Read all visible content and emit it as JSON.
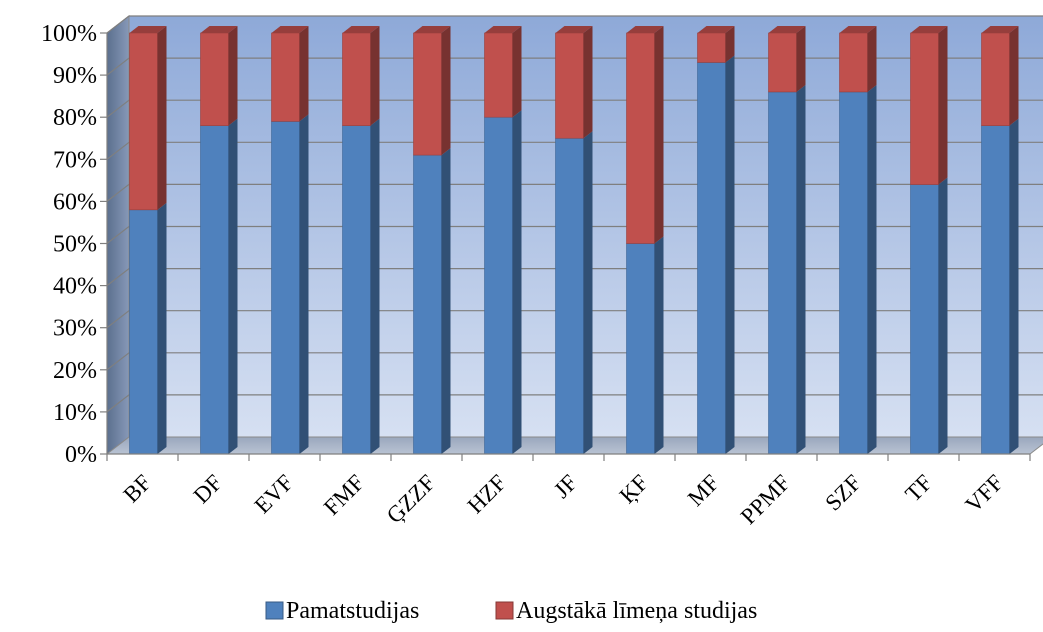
{
  "chart_data": {
    "type": "bar",
    "stacked": true,
    "percent": true,
    "three_d": true,
    "categories": [
      "BF",
      "DF",
      "EVF",
      "FMF",
      "ĢZZF",
      "HZF",
      "JF",
      "ĶF",
      "MF",
      "PPMF",
      "SZF",
      "TF",
      "VFF"
    ],
    "series": [
      {
        "name": "Pamatstudijas",
        "color": "#4f81bd",
        "values": [
          58,
          78,
          79,
          78,
          71,
          80,
          75,
          50,
          93,
          86,
          86,
          64,
          78
        ]
      },
      {
        "name": "Augstākā līmeņa studijas",
        "color": "#c0504d",
        "values": [
          42,
          22,
          21,
          22,
          29,
          20,
          25,
          50,
          7,
          14,
          14,
          36,
          22
        ]
      }
    ],
    "y_ticks": [
      "0%",
      "10%",
      "20%",
      "30%",
      "40%",
      "50%",
      "60%",
      "70%",
      "80%",
      "90%",
      "100%"
    ],
    "ylim": [
      0,
      100
    ],
    "grid": true,
    "legend": "bottom"
  }
}
